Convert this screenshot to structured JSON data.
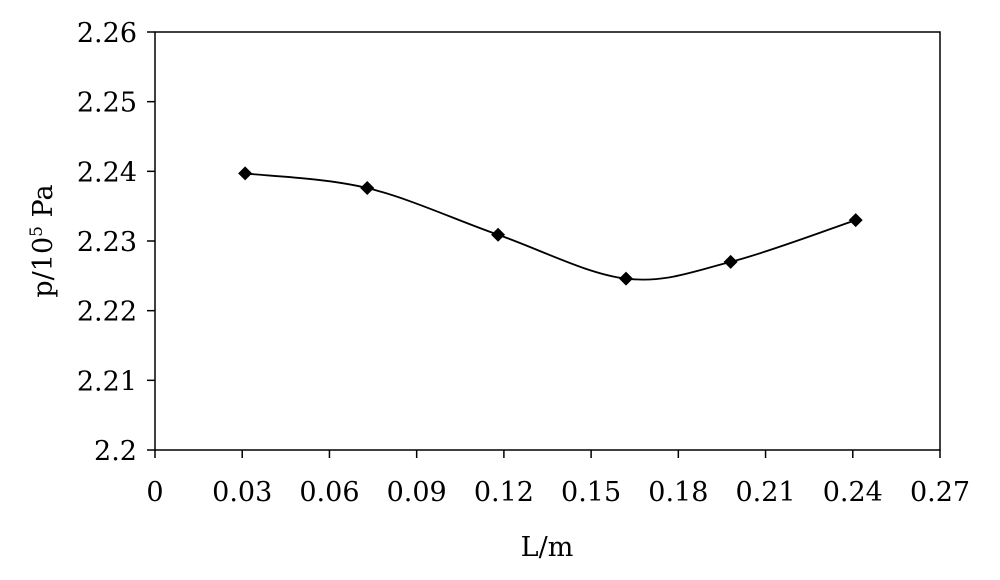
{
  "chart_data": {
    "type": "line",
    "title": "",
    "xlabel": "L/m",
    "ylabel_base": "p/10",
    "ylabel_exponent": "5",
    "ylabel_unit": " Pa",
    "xlim": [
      0,
      0.27
    ],
    "ylim": [
      2.2,
      2.26
    ],
    "x_ticks": [
      "0",
      "0.03",
      "0.06",
      "0.09",
      "0.12",
      "0.15",
      "0.18",
      "0.21",
      "0.24",
      "0.27"
    ],
    "y_ticks": [
      "2.2",
      "2.21",
      "2.22",
      "2.23",
      "2.24",
      "2.25",
      "2.26"
    ],
    "grid": false,
    "legend": "none",
    "marker": "diamond",
    "line_color": "#000000",
    "series": [
      {
        "x": [
          0.031,
          0.073,
          0.118,
          0.162,
          0.198,
          0.241
        ],
        "y": [
          2.2397,
          2.2376,
          2.2309,
          2.2246,
          2.227,
          2.233
        ]
      }
    ]
  }
}
